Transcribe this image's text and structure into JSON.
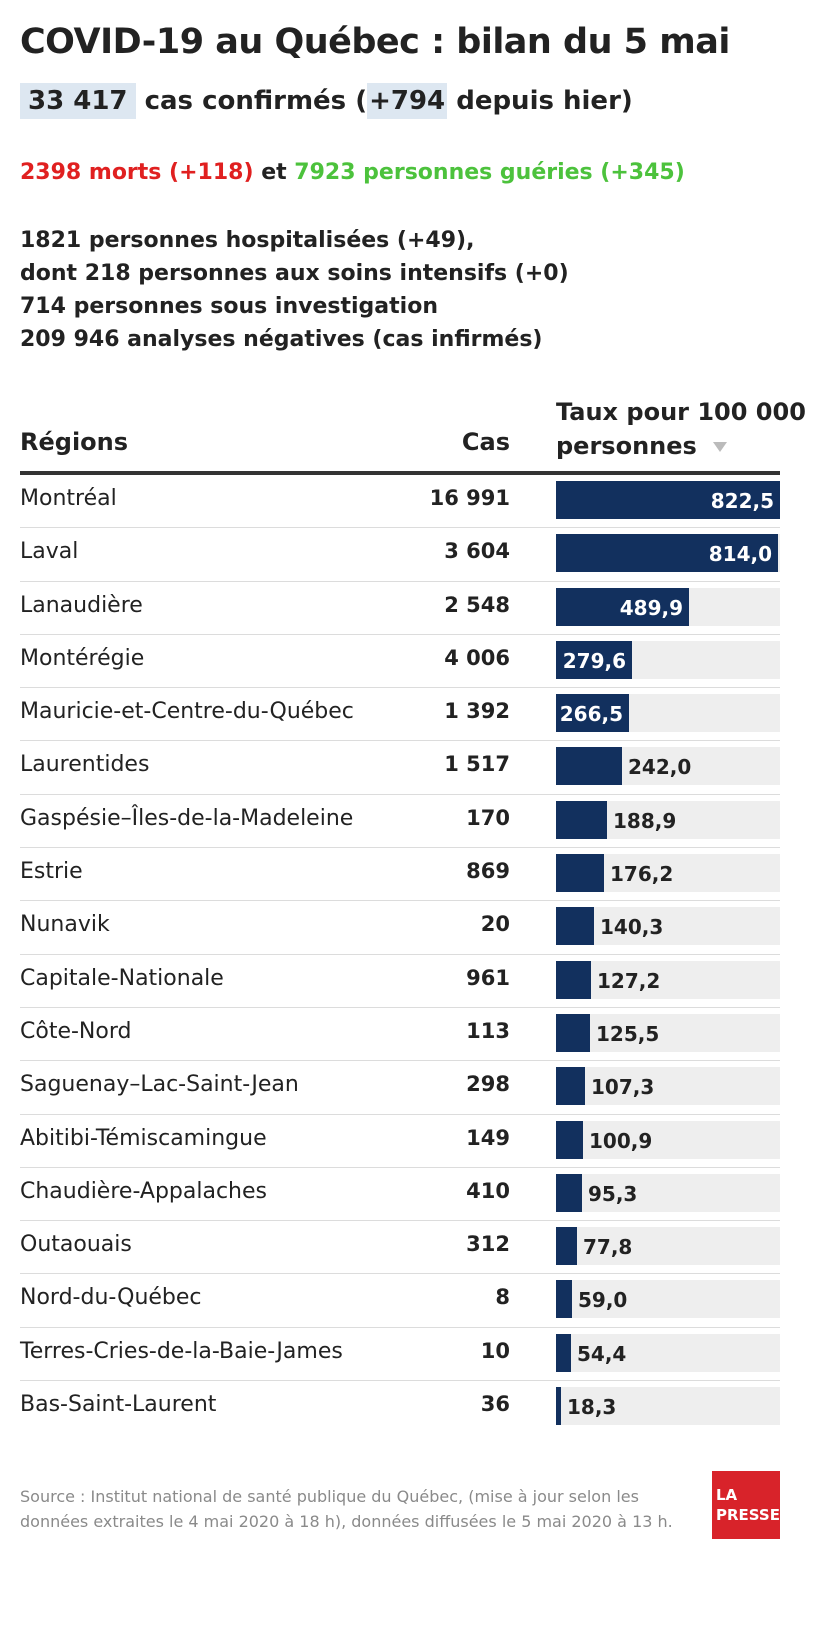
{
  "title": "COVID-19 au Québec : bilan du 5 mai",
  "cases": {
    "total": "33 417",
    "label": "cas confirmés (",
    "delta": "+794",
    "suffix": "depuis hier)"
  },
  "outcomes": {
    "deaths": "2398 morts (+118)",
    "and": "et",
    "recovered": "7923 personnes guéries (+345)"
  },
  "stats": [
    "1821 personnes hospitalisées (+49),",
    "dont 218 personnes aux soins intensifs (+0)",
    "714 personnes sous investigation",
    "209 946 analyses négatives (cas infirmés)"
  ],
  "table_headers": {
    "region": "Régions",
    "cas": "Cas",
    "taux": "Taux pour 100 000 personnes"
  },
  "colors": {
    "bar": "#12305e",
    "track": "#eeeeee",
    "deaths": "#e02020",
    "recovered": "#4cc23c",
    "highlight": "#dde7f1",
    "logo": "#d8232a"
  },
  "chart_data": {
    "type": "table",
    "columns": [
      "Régions",
      "Cas",
      "Taux pour 100 000 personnes"
    ],
    "xlim": [
      0,
      822.5
    ],
    "rows": [
      {
        "region": "Montréal",
        "cas": "16 991",
        "taux": 822.5,
        "taux_label": "822,5"
      },
      {
        "region": "Laval",
        "cas": "3 604",
        "taux": 814.0,
        "taux_label": "814,0"
      },
      {
        "region": "Lanaudière",
        "cas": "2 548",
        "taux": 489.9,
        "taux_label": "489,9"
      },
      {
        "region": "Montérégie",
        "cas": "4 006",
        "taux": 279.6,
        "taux_label": "279,6"
      },
      {
        "region": "Mauricie-et-Centre-du-Québec",
        "cas": "1 392",
        "taux": 266.5,
        "taux_label": "266,5"
      },
      {
        "region": "Laurentides",
        "cas": "1 517",
        "taux": 242.0,
        "taux_label": "242,0"
      },
      {
        "region": "Gaspésie–Îles-de-la-Madeleine",
        "cas": "170",
        "taux": 188.9,
        "taux_label": "188,9"
      },
      {
        "region": "Estrie",
        "cas": "869",
        "taux": 176.2,
        "taux_label": "176,2"
      },
      {
        "region": "Nunavik",
        "cas": "20",
        "taux": 140.3,
        "taux_label": "140,3"
      },
      {
        "region": "Capitale-Nationale",
        "cas": "961",
        "taux": 127.2,
        "taux_label": "127,2"
      },
      {
        "region": "Côte-Nord",
        "cas": "113",
        "taux": 125.5,
        "taux_label": "125,5"
      },
      {
        "region": "Saguenay–Lac-Saint-Jean",
        "cas": "298",
        "taux": 107.3,
        "taux_label": "107,3"
      },
      {
        "region": "Abitibi-Témiscamingue",
        "cas": "149",
        "taux": 100.9,
        "taux_label": "100,9"
      },
      {
        "region": "Chaudière-Appalaches",
        "cas": "410",
        "taux": 95.3,
        "taux_label": "95,3"
      },
      {
        "region": "Outaouais",
        "cas": "312",
        "taux": 77.8,
        "taux_label": "77,8"
      },
      {
        "region": "Nord-du-Québec",
        "cas": "8",
        "taux": 59.0,
        "taux_label": "59,0"
      },
      {
        "region": "Terres-Cries-de-la-Baie-James",
        "cas": "10",
        "taux": 54.4,
        "taux_label": "54,4"
      },
      {
        "region": "Bas-Saint-Laurent",
        "cas": "36",
        "taux": 18.3,
        "taux_label": "18,3"
      }
    ]
  },
  "source": "Source : Institut national de santé publique du Québec, (mise à jour selon les données extraites le 4 mai 2020 à 18 h), données diffusées le 5 mai 2020 à 13 h.",
  "logo": {
    "line1": "LA",
    "line2": "PRESSE"
  }
}
